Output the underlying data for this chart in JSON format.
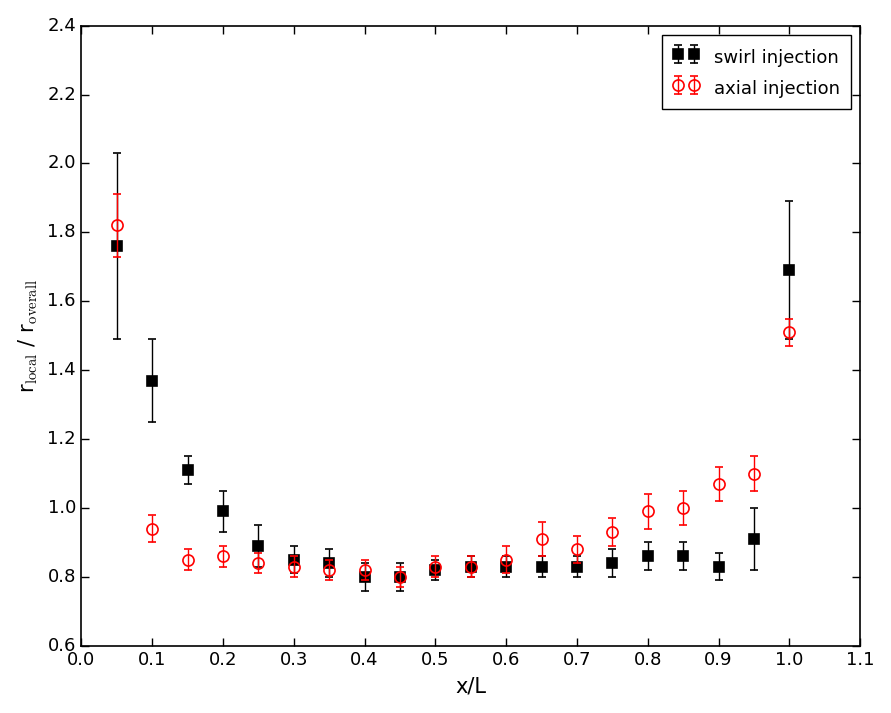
{
  "swirl_x": [
    0.05,
    0.1,
    0.15,
    0.2,
    0.25,
    0.3,
    0.35,
    0.4,
    0.45,
    0.5,
    0.55,
    0.6,
    0.65,
    0.7,
    0.75,
    0.8,
    0.85,
    0.9,
    0.95,
    1.0
  ],
  "swirl_y": [
    1.76,
    1.37,
    1.11,
    0.99,
    0.89,
    0.85,
    0.84,
    0.8,
    0.8,
    0.82,
    0.83,
    0.83,
    0.83,
    0.83,
    0.84,
    0.86,
    0.86,
    0.83,
    0.91,
    1.69
  ],
  "swirl_yerr": [
    0.27,
    0.12,
    0.04,
    0.06,
    0.06,
    0.04,
    0.04,
    0.04,
    0.04,
    0.03,
    0.03,
    0.03,
    0.03,
    0.03,
    0.04,
    0.04,
    0.04,
    0.04,
    0.09,
    0.2
  ],
  "axial_x": [
    0.05,
    0.1,
    0.15,
    0.2,
    0.25,
    0.3,
    0.35,
    0.4,
    0.45,
    0.5,
    0.55,
    0.6,
    0.65,
    0.7,
    0.75,
    0.8,
    0.85,
    0.9,
    0.95,
    1.0
  ],
  "axial_y": [
    1.82,
    0.94,
    0.85,
    0.86,
    0.84,
    0.83,
    0.82,
    0.82,
    0.8,
    0.83,
    0.83,
    0.85,
    0.91,
    0.88,
    0.93,
    0.99,
    1.0,
    1.07,
    1.1,
    1.51
  ],
  "axial_yerr": [
    0.09,
    0.04,
    0.03,
    0.03,
    0.03,
    0.03,
    0.03,
    0.03,
    0.03,
    0.03,
    0.03,
    0.04,
    0.05,
    0.04,
    0.04,
    0.05,
    0.05,
    0.05,
    0.05,
    0.04
  ],
  "xlabel": "x/L",
  "xlim": [
    0.0,
    1.1
  ],
  "ylim": [
    0.6,
    2.4
  ],
  "xticks": [
    0.0,
    0.1,
    0.2,
    0.3,
    0.4,
    0.5,
    0.6,
    0.7,
    0.8,
    0.9,
    1.0,
    1.1
  ],
  "yticks": [
    0.6,
    0.8,
    1.0,
    1.2,
    1.4,
    1.6,
    1.8,
    2.0,
    2.2,
    2.4
  ],
  "swirl_color": "#000000",
  "axial_color": "#ff0000",
  "swirl_label": "swirl injection",
  "axial_label": "axial injection",
  "legend_loc": "upper right",
  "marker_size": 7,
  "capsize": 3,
  "elinewidth": 1.0,
  "markeredgewidth": 1.2
}
